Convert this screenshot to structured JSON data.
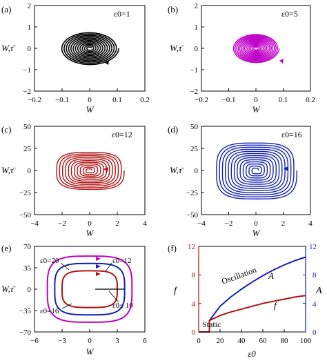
{
  "figure": {
    "panels": [
      {
        "id": "a",
        "label": "(a)",
        "annotation": "ε0=1",
        "xlabel": "W",
        "ylabel": "W,τ̄",
        "xticks": [
          "−0.2",
          "−0.1",
          "0",
          "0.1",
          "0.2"
        ],
        "yticks": [
          "2",
          "1",
          "0",
          "−1",
          "−2"
        ],
        "color": "#000000"
      },
      {
        "id": "b",
        "label": "(b)",
        "annotation": "ε0=5",
        "xlabel": "W",
        "ylabel": "W,τ̄",
        "xticks": [
          "−0.2",
          "−0.1",
          "0",
          "0.1",
          "0.2"
        ],
        "yticks": [
          "2",
          "1",
          "0",
          "−1",
          "−2"
        ],
        "color": "#c000c8"
      },
      {
        "id": "c",
        "label": "(c)",
        "annotation": "ε0=12",
        "xlabel": "W",
        "ylabel": "W,τ̄",
        "xticks": [
          "−4",
          "−2",
          "0",
          "2",
          "4"
        ],
        "yticks": [
          "50",
          "25",
          "0",
          "−25",
          "−50"
        ],
        "color": "#b01010"
      },
      {
        "id": "d",
        "label": "(d)",
        "annotation": "ε0=16",
        "xlabel": "W",
        "ylabel": "W,τ̄",
        "xticks": [
          "−4",
          "−2",
          "0",
          "2",
          "4"
        ],
        "yticks": [
          "50",
          "25",
          "0",
          "−25",
          "−50"
        ],
        "color": "#1020b0"
      },
      {
        "id": "e",
        "label": "(e)",
        "xlabel": "W",
        "ylabel": "W,τ̄",
        "xticks": [
          "−6",
          "−3",
          "0",
          "3",
          "6"
        ],
        "yticks": [
          "70",
          "35",
          "0",
          "−35",
          "−70"
        ],
        "curve_labels": [
          "ε0=20",
          "ε0=12",
          "ε0=16",
          "ε0≤ 10"
        ]
      }
    ],
    "panel_f": {
      "label": "(f)",
      "xlabel": "ε0",
      "ylabel_left": "f",
      "ylabel_right": "A",
      "xticks": [
        "0",
        "20",
        "40",
        "60",
        "80",
        "100"
      ],
      "yticks_left": [
        "0",
        "4",
        "8",
        "12"
      ],
      "yticks_right": [
        "0",
        "4",
        "8",
        "12"
      ],
      "text_oscillation": "Oscillation",
      "text_static": "Static",
      "curve_label_A": "A",
      "curve_label_f": "f",
      "left_axis_color": "#b01010",
      "right_axis_color": "#1020b0"
    }
  },
  "chart_data": [
    {
      "type": "line",
      "panel": "a",
      "description_free": true,
      "xlim": [
        -0.2,
        0.2
      ],
      "ylim": [
        -2,
        2
      ],
      "series": [
        {
          "values_x": [
            0.105,
            0.0
          ],
          "values_y": [
            0.0,
            0.0
          ]
        }
      ]
    },
    {
      "type": "line",
      "panel": "b",
      "xlim": [
        -0.2,
        0.2
      ],
      "ylim": [
        -2,
        2
      ],
      "series": [
        {
          "values_x": [
            0.085,
            0.0
          ],
          "values_y": [
            0.0,
            0.0
          ]
        }
      ]
    },
    {
      "type": "line",
      "panel": "c",
      "xlim": [
        -4,
        4
      ],
      "ylim": [
        -50,
        50
      ],
      "series": [
        {
          "values_x": [
            2.0,
            0.0
          ],
          "values_y": [
            0.0,
            0.0
          ]
        }
      ]
    },
    {
      "type": "line",
      "panel": "d",
      "xlim": [
        -4,
        4
      ],
      "ylim": [
        -50,
        50
      ],
      "series": [
        {
          "values_x": [
            3.0,
            0.0
          ],
          "values_y": [
            0.0,
            0.0
          ]
        }
      ]
    },
    {
      "type": "line",
      "panel": "e",
      "xlim": [
        -6,
        6
      ],
      "ylim": [
        -70,
        70
      ],
      "series": [
        {
          "name": "ε0=20",
          "amp_w": 4.6,
          "amp_v": 54,
          "color": "#c000c8"
        },
        {
          "name": "ε0=16",
          "amp_w": 3.8,
          "amp_v": 42,
          "color": "#1020b0"
        },
        {
          "name": "ε0=12",
          "amp_w": 3.0,
          "amp_v": 30,
          "color": "#b01010"
        },
        {
          "name": "ε0≤ 10",
          "amp_w": 0,
          "amp_v": 0,
          "color": "#000000"
        }
      ]
    },
    {
      "type": "line",
      "panel": "f",
      "xlim": [
        0,
        100
      ],
      "ylim_left": [
        0,
        12
      ],
      "ylim_right": [
        0,
        12
      ],
      "x": [
        0,
        10,
        10,
        20,
        30,
        40,
        50,
        60,
        70,
        80,
        90,
        100
      ],
      "series": [
        {
          "name": "A",
          "axis": "right",
          "color": "#1020b0",
          "values": [
            null,
            null,
            1.6,
            3.6,
            4.9,
            6.0,
            7.0,
            7.9,
            8.7,
            9.4,
            10.0,
            10.5
          ]
        },
        {
          "name": "f",
          "axis": "left",
          "color": "#b01010",
          "values": [
            0,
            0,
            1.6,
            2.3,
            2.8,
            3.2,
            3.6,
            4.0,
            4.3,
            4.6,
            4.9,
            5.1
          ]
        }
      ]
    }
  ]
}
